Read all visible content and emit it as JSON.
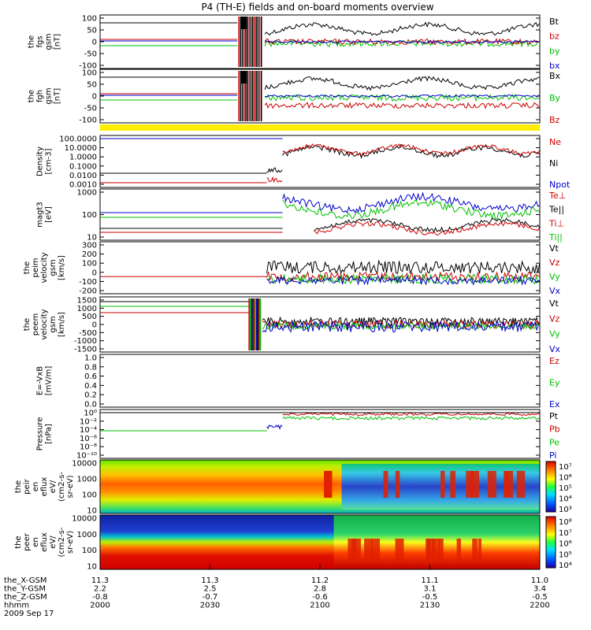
{
  "title": "P4 (TH-E) fields and on-board moments overview",
  "panels": [
    {
      "id": "fgs",
      "ylabel": [
        "the",
        "fgs",
        "gsm",
        "[nT]"
      ],
      "ticks": [
        "100",
        "50",
        "0",
        "-50",
        "-100"
      ],
      "legend": [
        {
          "text": "Bt",
          "color": "#000000"
        },
        {
          "text": "bz",
          "color": "#cc0000"
        },
        {
          "text": "by",
          "color": "#00c000"
        },
        {
          "text": "bx",
          "color": "#0000cc"
        }
      ]
    },
    {
      "id": "fgh",
      "ylabel": [
        "the",
        "fgh",
        "gsm",
        "[nT]"
      ],
      "ticks": [
        "100",
        "50",
        "0",
        "-50",
        "-100"
      ],
      "legend": [
        {
          "text": "Bx",
          "color": "#000000"
        },
        {
          "text": "By",
          "color": "#00c000"
        },
        {
          "text": "Bz",
          "color": "#cc0000"
        }
      ]
    },
    {
      "id": "density",
      "ylabel": [
        "Density",
        "[cm-3]"
      ],
      "ticks": [
        "100.0000",
        "10.0000",
        "1.0000",
        "0.1000",
        "0.0100",
        "0.0010"
      ],
      "legend": [
        {
          "text": "Ne",
          "color": "#cc0000"
        },
        {
          "text": "Ni",
          "color": "#000000"
        },
        {
          "text": "Npot",
          "color": "#0000cc"
        }
      ]
    },
    {
      "id": "temp",
      "ylabel": [
        "magt3",
        "[eV]"
      ],
      "ticks": [
        "1000",
        "100",
        "10"
      ],
      "legend": [
        {
          "text": "Te⊥",
          "color": "#cc0000"
        },
        {
          "text": "Te||",
          "color": "#000000"
        },
        {
          "text": "Ti⊥",
          "color": "#cc0000"
        },
        {
          "text": "Ti||",
          "color": "#00c000"
        }
      ]
    },
    {
      "id": "peim",
      "ylabel": [
        "the",
        "peim",
        "velocity",
        "gsm",
        "[km/s]"
      ],
      "ticks": [
        "300",
        "200",
        "100",
        "0",
        "-100",
        "-200"
      ],
      "legend": [
        {
          "text": "Vt",
          "color": "#000000"
        },
        {
          "text": "Vz",
          "color": "#cc0000"
        },
        {
          "text": "Vy",
          "color": "#00c000"
        },
        {
          "text": "Vx",
          "color": "#0000cc"
        }
      ]
    },
    {
      "id": "peem",
      "ylabel": [
        "the",
        "peem",
        "velocity",
        "gsm",
        "[km/s]"
      ],
      "ticks": [
        "1500",
        "1000",
        "500",
        "0",
        "-500",
        "-1000",
        "-1500"
      ],
      "legend": [
        {
          "text": "Vt",
          "color": "#000000"
        },
        {
          "text": "Vz",
          "color": "#cc0000"
        },
        {
          "text": "Vy",
          "color": "#00c000"
        },
        {
          "text": "Vx",
          "color": "#0000cc"
        }
      ]
    },
    {
      "id": "efield",
      "ylabel": [
        "E=-VxB",
        "[mV/m]"
      ],
      "ticks": [
        "1.0",
        "0.8",
        "0.6",
        "0.4",
        "0.2",
        "0.0"
      ],
      "legend": [
        {
          "text": "Ez",
          "color": "#cc0000"
        },
        {
          "text": "Ey",
          "color": "#00c000"
        },
        {
          "text": "Ex",
          "color": "#0000cc"
        }
      ]
    },
    {
      "id": "pressure",
      "ylabel": [
        "Pressure",
        "[nPa]"
      ],
      "ticks": [
        "10⁰",
        "10⁻²",
        "10⁻⁴",
        "10⁻⁶",
        "10⁻⁸",
        "10⁻¹⁰"
      ],
      "legend": [
        {
          "text": "Pt",
          "color": "#000000"
        },
        {
          "text": "Pb",
          "color": "#cc0000"
        },
        {
          "text": "Pe",
          "color": "#00c000"
        },
        {
          "text": "Pi",
          "color": "#0000cc"
        }
      ]
    },
    {
      "id": "peir",
      "ylabel": [
        "the",
        "peir",
        "en",
        "eflux",
        "eV/",
        "(cm2-s-",
        "sr-eV)"
      ],
      "ticks": [
        "10000",
        "1000",
        "100",
        "10"
      ],
      "colorbar": [
        "10⁷",
        "10⁶",
        "10⁵",
        "10⁴",
        "10³"
      ]
    },
    {
      "id": "peer",
      "ylabel": [
        "the",
        "peer",
        "en",
        "eflux",
        "eV/",
        "(cm2-s-",
        "sr-eV)"
      ],
      "ticks": [
        "10000",
        "1000",
        "100",
        "10"
      ],
      "colorbar": [
        "10⁸",
        "10⁷",
        "10⁶",
        "10⁵",
        "10⁴"
      ]
    }
  ],
  "xaxis": {
    "rows": [
      {
        "label": "the_X-GSM",
        "values": [
          "11.3",
          "11.3",
          "11.2",
          "11.1",
          "11.0"
        ]
      },
      {
        "label": "the_Y-GSM",
        "values": [
          "2.2",
          "2.5",
          "2.8",
          "3.1",
          "3.4"
        ]
      },
      {
        "label": "the_Z-GSM",
        "values": [
          "-0.8",
          "-0.7",
          "-0.6",
          "-0.5",
          "-0.5"
        ]
      },
      {
        "label": "hhmm",
        "values": [
          "2000",
          "2030",
          "2100",
          "2130",
          "2200"
        ]
      }
    ],
    "date": "2009 Sep 17"
  },
  "colors": {
    "black": "#000000",
    "red": "#cc0000",
    "green": "#00c000",
    "blue": "#0000cc",
    "yellow": "#ffee00"
  },
  "chart_data": {
    "type": "line",
    "title": "P4 (TH-E) fields and on-board moments overview",
    "x_time_range": [
      "2000",
      "2200"
    ],
    "series_summary": [
      {
        "panel": "the fgs gsm",
        "name": "Bt",
        "before_2045": 100,
        "after_2045": 45
      },
      {
        "panel": "the fgs gsm",
        "name": "bz",
        "before_2045": 5,
        "after_2045": 0
      },
      {
        "panel": "the fgs gsm",
        "name": "by",
        "before_2045": -10,
        "after_2045": 0
      },
      {
        "panel": "the fgs gsm",
        "name": "bx",
        "before_2045": 5,
        "after_2045": 0
      },
      {
        "panel": "Density",
        "name": "Ne",
        "before_2045": 0.001,
        "after_2045": 1.0
      },
      {
        "panel": "Density",
        "name": "Ni",
        "before_2045": 0.01,
        "after_2045": 1.0
      },
      {
        "panel": "Density",
        "name": "Npot",
        "before_2045": 100,
        "after_2045": 100
      }
    ]
  }
}
